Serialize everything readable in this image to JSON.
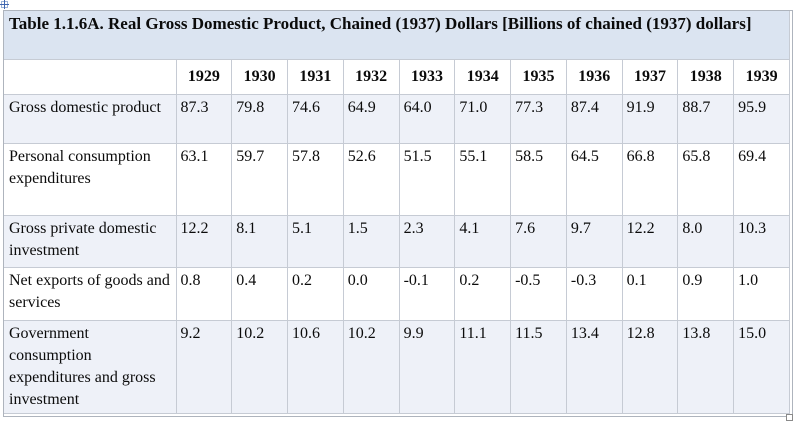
{
  "document": {
    "table_title": "Table 1.1.6A. Real Gross Domestic Product, Chained (1937) Dollars [Billions of chained (1937) dollars]"
  },
  "table": {
    "corner_header": "",
    "years": [
      "1929",
      "1930",
      "1931",
      "1932",
      "1933",
      "1934",
      "1935",
      "1936",
      "1937",
      "1938",
      "1939"
    ],
    "rows": [
      {
        "label": "Gross domestic product",
        "values": [
          "87.3",
          "79.8",
          "74.6",
          "64.9",
          "64.0",
          "71.0",
          "77.3",
          "87.4",
          "91.9",
          "88.7",
          "95.9"
        ]
      },
      {
        "label": "Personal consumption expenditures",
        "values": [
          "63.1",
          "59.7",
          "57.8",
          "52.6",
          "51.5",
          "55.1",
          "58.5",
          "64.5",
          "66.8",
          "65.8",
          "69.4"
        ]
      },
      {
        "label": "Gross private domestic investment",
        "values": [
          "12.2",
          "8.1",
          "5.1",
          "1.5",
          "2.3",
          "4.1",
          "7.6",
          "9.7",
          "12.2",
          "8.0",
          "10.3"
        ]
      },
      {
        "label": "Net exports of goods and services",
        "values": [
          "0.8",
          "0.4",
          "0.2",
          "0.0",
          "-0.1",
          "0.2",
          "-0.5",
          "-0.3",
          "0.1",
          "0.9",
          "1.0"
        ]
      },
      {
        "label": "Government consumption expenditures and gross investment",
        "values": [
          "9.2",
          "10.2",
          "10.6",
          "10.2",
          "9.9",
          "11.1",
          "11.5",
          "13.4",
          "12.8",
          "13.8",
          "15.0"
        ]
      }
    ]
  },
  "icons": {
    "move_handle": "table-move-handle-icon",
    "resize_handle": "table-resize-handle"
  },
  "colors": {
    "title_background": "#dbe4f1",
    "alt_row_background": "#eef1f8",
    "row_background": "#ffffff",
    "cell_border": "#c6cbd4",
    "outer_border": "#aeb4bd",
    "text": "#0b0b0b",
    "handle_accent": "#3f66b0"
  },
  "chart_data": {
    "type": "table",
    "title": "Table 1.1.6A. Real Gross Domestic Product, Chained (1937) Dollars",
    "unit": "Billions of chained (1937) dollars",
    "categories": [
      1929,
      1930,
      1931,
      1932,
      1933,
      1934,
      1935,
      1936,
      1937,
      1938,
      1939
    ],
    "series": [
      {
        "name": "Gross domestic product",
        "values": [
          87.3,
          79.8,
          74.6,
          64.9,
          64.0,
          71.0,
          77.3,
          87.4,
          91.9,
          88.7,
          95.9
        ]
      },
      {
        "name": "Personal consumption expenditures",
        "values": [
          63.1,
          59.7,
          57.8,
          52.6,
          51.5,
          55.1,
          58.5,
          64.5,
          66.8,
          65.8,
          69.4
        ]
      },
      {
        "name": "Gross private domestic investment",
        "values": [
          12.2,
          8.1,
          5.1,
          1.5,
          2.3,
          4.1,
          7.6,
          9.7,
          12.2,
          8.0,
          10.3
        ]
      },
      {
        "name": "Net exports of goods and services",
        "values": [
          0.8,
          0.4,
          0.2,
          0.0,
          -0.1,
          0.2,
          -0.5,
          -0.3,
          0.1,
          0.9,
          1.0
        ]
      },
      {
        "name": "Government consumption expenditures and gross investment",
        "values": [
          9.2,
          10.2,
          10.6,
          10.2,
          9.9,
          11.1,
          11.5,
          13.4,
          12.8,
          13.8,
          15.0
        ]
      }
    ]
  }
}
